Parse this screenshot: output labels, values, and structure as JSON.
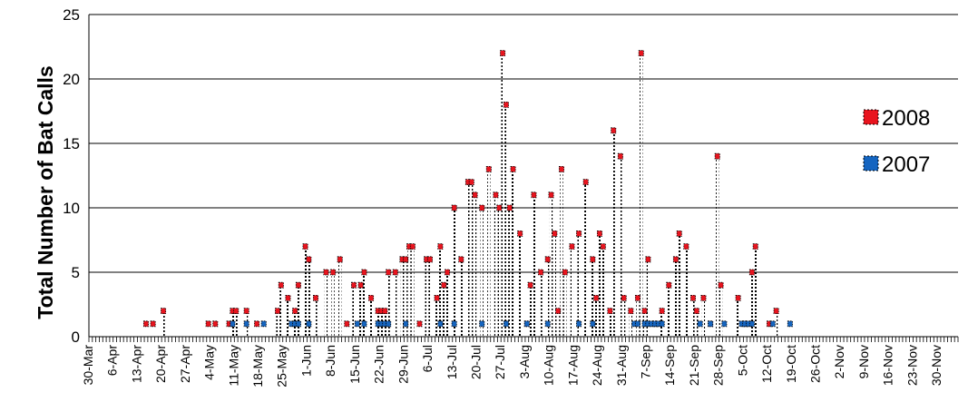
{
  "chart_data": {
    "type": "bar",
    "ylabel": "Total Number of Bat Calls",
    "xlabel": "",
    "ylim": [
      0,
      25
    ],
    "yticks": [
      0,
      5,
      10,
      15,
      20,
      25
    ],
    "x_start": "2008-03-30",
    "x_end": "2008-12-06",
    "x_tick_labels": [
      "30-Mar",
      "6-Apr",
      "13-Apr",
      "20-Apr",
      "27-Apr",
      "4-May",
      "11-May",
      "18-May",
      "25-May",
      "1-Jun",
      "8-Jun",
      "15-Jun",
      "22-Jun",
      "29-Jun",
      "6-Jul",
      "13-Jul",
      "20-Jul",
      "27-Jul",
      "3-Aug",
      "10-Aug",
      "17-Aug",
      "24-Aug",
      "31-Aug",
      "7-Sep",
      "14-Sep",
      "21-Sep",
      "28-Sep",
      "5-Oct",
      "12-Oct",
      "19-Oct",
      "26-Oct",
      "2-Nov",
      "9-Nov",
      "16-Nov",
      "23-Nov",
      "30-Nov"
    ],
    "grid": "horizontal",
    "legend_position": "right",
    "series": [
      {
        "name": "2008",
        "color": "#e8141e",
        "marker": "dotted-column",
        "points": [
          [
            "2008-04-15",
            1
          ],
          [
            "2008-04-17",
            1
          ],
          [
            "2008-04-20",
            2
          ],
          [
            "2008-05-03",
            1
          ],
          [
            "2008-05-05",
            1
          ],
          [
            "2008-05-09",
            1
          ],
          [
            "2008-05-10",
            2
          ],
          [
            "2008-05-11",
            2
          ],
          [
            "2008-05-14",
            2
          ],
          [
            "2008-05-17",
            1
          ],
          [
            "2008-05-23",
            2
          ],
          [
            "2008-05-24",
            4
          ],
          [
            "2008-05-26",
            3
          ],
          [
            "2008-05-28",
            2
          ],
          [
            "2008-05-29",
            4
          ],
          [
            "2008-05-31",
            7
          ],
          [
            "2008-06-01",
            6
          ],
          [
            "2008-06-03",
            3
          ],
          [
            "2008-06-06",
            5
          ],
          [
            "2008-06-08",
            5
          ],
          [
            "2008-06-10",
            6
          ],
          [
            "2008-06-12",
            1
          ],
          [
            "2008-06-14",
            4
          ],
          [
            "2008-06-16",
            4
          ],
          [
            "2008-06-17",
            5
          ],
          [
            "2008-06-19",
            3
          ],
          [
            "2008-06-21",
            2
          ],
          [
            "2008-06-22",
            2
          ],
          [
            "2008-06-23",
            2
          ],
          [
            "2008-06-24",
            5
          ],
          [
            "2008-06-26",
            5
          ],
          [
            "2008-06-28",
            6
          ],
          [
            "2008-06-29",
            6
          ],
          [
            "2008-06-30",
            7
          ],
          [
            "2008-07-01",
            7
          ],
          [
            "2008-07-03",
            1
          ],
          [
            "2008-07-05",
            6
          ],
          [
            "2008-07-06",
            6
          ],
          [
            "2008-07-08",
            3
          ],
          [
            "2008-07-09",
            7
          ],
          [
            "2008-07-10",
            4
          ],
          [
            "2008-07-11",
            5
          ],
          [
            "2008-07-13",
            10
          ],
          [
            "2008-07-15",
            6
          ],
          [
            "2008-07-17",
            12
          ],
          [
            "2008-07-18",
            12
          ],
          [
            "2008-07-19",
            11
          ],
          [
            "2008-07-21",
            10
          ],
          [
            "2008-07-23",
            13
          ],
          [
            "2008-07-25",
            11
          ],
          [
            "2008-07-26",
            10
          ],
          [
            "2008-07-27",
            22
          ],
          [
            "2008-07-28",
            18
          ],
          [
            "2008-07-29",
            10
          ],
          [
            "2008-07-30",
            13
          ],
          [
            "2008-08-01",
            8
          ],
          [
            "2008-08-03",
            1
          ],
          [
            "2008-08-04",
            4
          ],
          [
            "2008-08-05",
            11
          ],
          [
            "2008-08-07",
            5
          ],
          [
            "2008-08-09",
            6
          ],
          [
            "2008-08-10",
            11
          ],
          [
            "2008-08-11",
            8
          ],
          [
            "2008-08-12",
            2
          ],
          [
            "2008-08-13",
            13
          ],
          [
            "2008-08-14",
            5
          ],
          [
            "2008-08-16",
            7
          ],
          [
            "2008-08-18",
            8
          ],
          [
            "2008-08-20",
            12
          ],
          [
            "2008-08-22",
            6
          ],
          [
            "2008-08-23",
            3
          ],
          [
            "2008-08-24",
            8
          ],
          [
            "2008-08-25",
            7
          ],
          [
            "2008-08-27",
            2
          ],
          [
            "2008-08-28",
            16
          ],
          [
            "2008-08-30",
            14
          ],
          [
            "2008-08-31",
            3
          ],
          [
            "2008-09-02",
            2
          ],
          [
            "2008-09-04",
            3
          ],
          [
            "2008-09-05",
            22
          ],
          [
            "2008-09-06",
            2
          ],
          [
            "2008-09-07",
            6
          ],
          [
            "2008-09-09",
            1
          ],
          [
            "2008-09-11",
            2
          ],
          [
            "2008-09-13",
            4
          ],
          [
            "2008-09-15",
            6
          ],
          [
            "2008-09-16",
            8
          ],
          [
            "2008-09-18",
            7
          ],
          [
            "2008-09-20",
            3
          ],
          [
            "2008-09-21",
            2
          ],
          [
            "2008-09-23",
            3
          ],
          [
            "2008-09-25",
            1
          ],
          [
            "2008-09-27",
            14
          ],
          [
            "2008-09-28",
            4
          ],
          [
            "2008-10-03",
            3
          ],
          [
            "2008-10-05",
            1
          ],
          [
            "2008-10-07",
            5
          ],
          [
            "2008-10-08",
            7
          ],
          [
            "2008-10-12",
            1
          ],
          [
            "2008-10-14",
            2
          ]
        ]
      },
      {
        "name": "2007",
        "color": "#1565c0",
        "marker": "dotted-column",
        "points": [
          [
            "2008-05-10",
            1
          ],
          [
            "2008-05-14",
            1
          ],
          [
            "2008-05-19",
            1
          ],
          [
            "2008-05-27",
            1
          ],
          [
            "2008-05-28",
            1
          ],
          [
            "2008-05-29",
            1
          ],
          [
            "2008-06-01",
            1
          ],
          [
            "2008-06-15",
            1
          ],
          [
            "2008-06-17",
            1
          ],
          [
            "2008-06-21",
            1
          ],
          [
            "2008-06-22",
            1
          ],
          [
            "2008-06-23",
            1
          ],
          [
            "2008-06-24",
            1
          ],
          [
            "2008-06-29",
            1
          ],
          [
            "2008-07-09",
            1
          ],
          [
            "2008-07-13",
            1
          ],
          [
            "2008-07-21",
            1
          ],
          [
            "2008-07-28",
            1
          ],
          [
            "2008-08-03",
            1
          ],
          [
            "2008-08-09",
            1
          ],
          [
            "2008-08-18",
            1
          ],
          [
            "2008-08-22",
            1
          ],
          [
            "2008-09-03",
            1
          ],
          [
            "2008-09-04",
            1
          ],
          [
            "2008-09-06",
            1
          ],
          [
            "2008-09-07",
            1
          ],
          [
            "2008-09-08",
            1
          ],
          [
            "2008-09-09",
            1
          ],
          [
            "2008-09-10",
            1
          ],
          [
            "2008-09-11",
            1
          ],
          [
            "2008-09-22",
            1
          ],
          [
            "2008-09-25",
            1
          ],
          [
            "2008-09-29",
            1
          ],
          [
            "2008-10-04",
            1
          ],
          [
            "2008-10-05",
            1
          ],
          [
            "2008-10-06",
            1
          ],
          [
            "2008-10-07",
            1
          ],
          [
            "2008-10-13",
            1
          ],
          [
            "2008-10-18",
            1
          ]
        ]
      }
    ]
  }
}
